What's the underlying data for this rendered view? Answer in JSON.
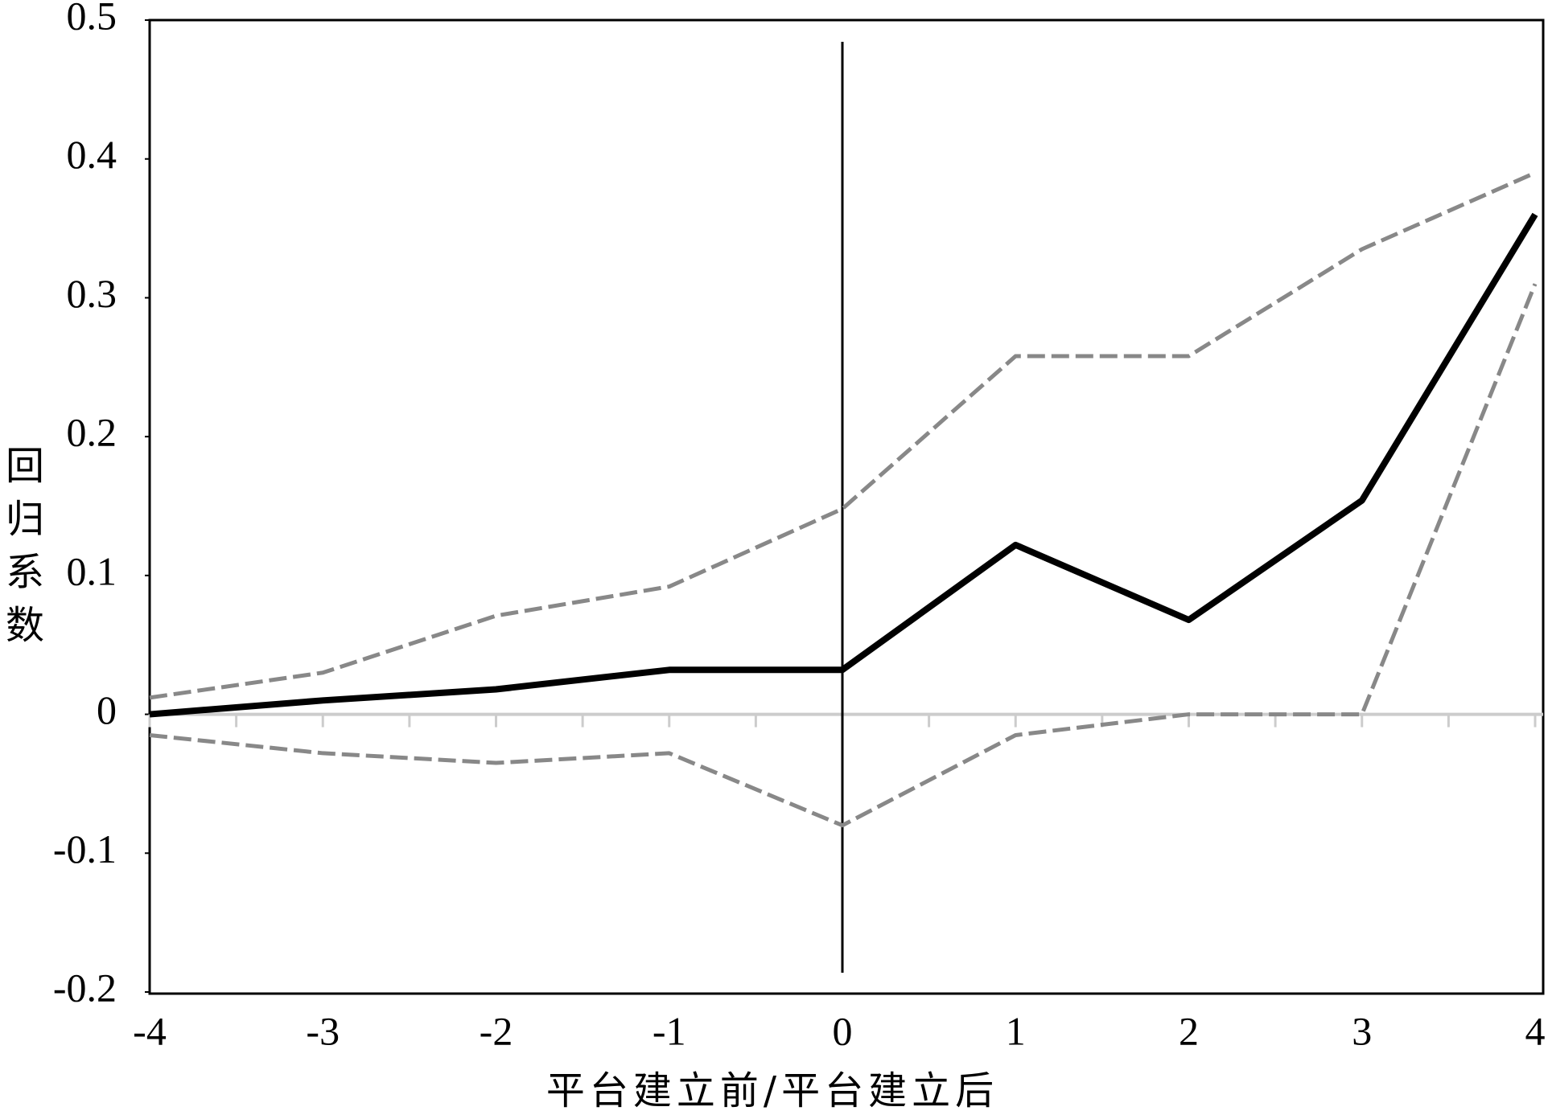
{
  "chart_data": {
    "type": "line",
    "x_label": "平台建立前/平台建立后",
    "y_label": "回归系数",
    "x": [
      -4,
      -3,
      -2,
      -1,
      0,
      1,
      2,
      3,
      4
    ],
    "series": [
      {
        "color": "#000000",
        "style": "solid",
        "values": [
          0,
          0.01,
          0.018,
          0.032,
          0.032,
          0.122,
          0.068,
          0.154,
          0.36
        ]
      },
      {
        "color": "#888888",
        "style": "dashed",
        "values": [
          0.012,
          0.03,
          0.071,
          0.092,
          0.148,
          0.258,
          0.258,
          0.335,
          0.39
        ]
      },
      {
        "color": "#888888",
        "style": "dashed",
        "values": [
          -0.015,
          -0.028,
          -0.035,
          -0.028,
          -0.08,
          -0.015,
          0,
          0,
          0.31
        ]
      }
    ],
    "vline_x": 0,
    "xlim": [
      -4,
      4
    ],
    "xticks": [
      -4,
      -3,
      -2,
      -1,
      0,
      1,
      2,
      3,
      4
    ],
    "ylim": [
      -0.2,
      0.5
    ],
    "yticks": [
      0.5,
      0.4,
      0.3,
      0.2,
      0.1,
      0,
      -0.1,
      -0.2
    ]
  }
}
